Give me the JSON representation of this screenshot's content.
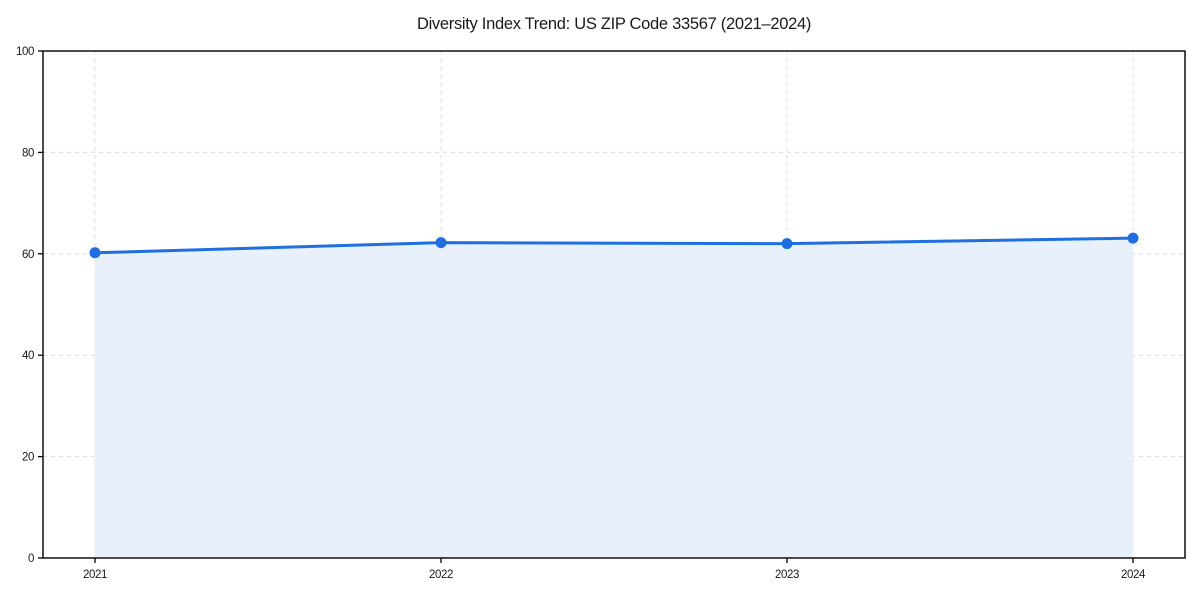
{
  "chart": {
    "title": "Diversity Index Trend: US ZIP Code 33567 (2021–2024)"
  },
  "chart_data": {
    "type": "area",
    "title": "Diversity Index Trend: US ZIP Code 33567 (2021–2024)",
    "series_name": "Diversity Index",
    "x": [
      "2021",
      "2022",
      "2023",
      "2024"
    ],
    "values": [
      60.2,
      62.2,
      62.0,
      63.1
    ],
    "xlabel": "",
    "ylabel": "",
    "ylim": [
      0,
      100
    ],
    "yticks": [
      0,
      20,
      40,
      60,
      80,
      100
    ],
    "xticks": [
      "2021",
      "2022",
      "2023",
      "2024"
    ],
    "grid": true,
    "grid_style": "dashed",
    "legend": "none",
    "marker": "circle",
    "colors": {
      "line": "#1f6fe0",
      "marker": "#1f6fe0",
      "fill": "#e8f0fb",
      "grid": "#dcdcdc",
      "axis": "#000000",
      "text": "#1a1a1a",
      "background": "#ffffff"
    }
  }
}
